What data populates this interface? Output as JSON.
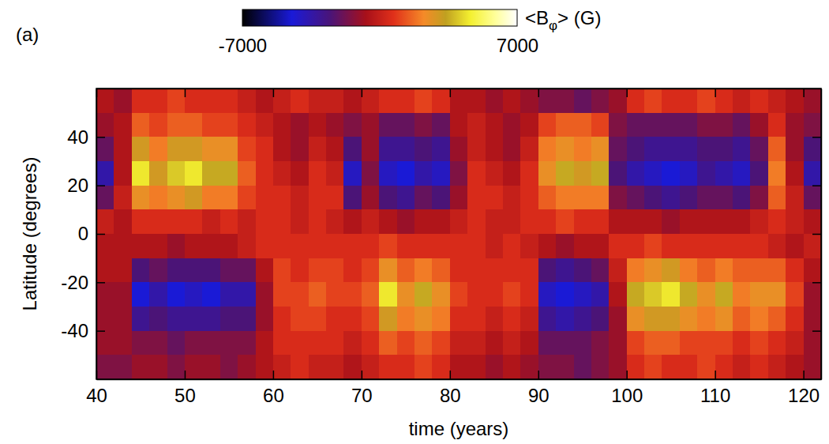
{
  "chart_data": {
    "type": "heatmap",
    "panel": "(a)",
    "xlabel": "time (years)",
    "ylabel": "Latitude (degrees)",
    "xlim": [
      40,
      122
    ],
    "xticks": [
      40,
      50,
      60,
      70,
      80,
      90,
      100,
      110,
      120
    ],
    "ylim": [
      -60,
      60
    ],
    "yticks": [
      -40,
      -20,
      0,
      20,
      40
    ],
    "x": [
      41,
      43,
      45,
      47,
      49,
      51,
      53,
      55,
      57,
      59,
      61,
      63,
      65,
      67,
      69,
      71,
      73,
      75,
      77,
      79,
      81,
      83,
      85,
      87,
      89,
      91,
      93,
      95,
      97,
      99,
      101,
      103,
      105,
      107,
      109,
      111,
      113,
      115,
      117,
      119,
      121
    ],
    "y": [
      55,
      45,
      35,
      25,
      15,
      5,
      -5,
      -15,
      -25,
      -35,
      -45,
      -55
    ],
    "cells": [
      [
        -500,
        -1000,
        500,
        500,
        1000,
        500,
        500,
        500,
        0,
        -500,
        0,
        500,
        0,
        0,
        -500,
        0,
        500,
        500,
        1000,
        500,
        -500,
        -500,
        -1000,
        -500,
        -1000,
        -1500,
        -1500,
        -2000,
        -1500,
        -1000,
        500,
        1000,
        500,
        500,
        1000,
        500,
        0,
        500,
        0,
        -500,
        -1000
      ],
      [
        -1000,
        -500,
        1500,
        1000,
        1500,
        1500,
        1000,
        1000,
        500,
        0,
        -500,
        -1000,
        -500,
        -1000,
        -1500,
        -1000,
        -2000,
        -2000,
        -1500,
        -2000,
        -500,
        0,
        -500,
        -1000,
        -500,
        1000,
        1500,
        1500,
        1000,
        -1500,
        -2000,
        -2000,
        -2000,
        -2000,
        -1500,
        -1500,
        -2000,
        -1000,
        500,
        -1000,
        -1500
      ],
      [
        -2000,
        -500,
        3000,
        2000,
        3000,
        3000,
        2500,
        2500,
        1000,
        500,
        -500,
        -1000,
        0,
        -500,
        -2500,
        -1000,
        -3000,
        -3000,
        -2500,
        -3000,
        -1000,
        0,
        -500,
        -1000,
        0,
        2000,
        2500,
        2000,
        2500,
        -2000,
        -2500,
        -3000,
        -3000,
        -3000,
        -2500,
        -2500,
        -3000,
        -2000,
        1500,
        -1000,
        -2500
      ],
      [
        -3500,
        -500,
        4500,
        3000,
        4000,
        4500,
        3500,
        3500,
        1500,
        500,
        0,
        -500,
        500,
        0,
        -4000,
        -1500,
        -4000,
        -4500,
        -3500,
        -4000,
        -1500,
        500,
        0,
        -500,
        500,
        2500,
        3500,
        3000,
        3500,
        -2500,
        -3500,
        -4000,
        -4500,
        -4000,
        -3000,
        -3500,
        -4000,
        -2500,
        2000,
        -500,
        -3500
      ],
      [
        -2000,
        0,
        2500,
        2000,
        2500,
        3000,
        2000,
        2000,
        1000,
        500,
        500,
        0,
        500,
        500,
        -2500,
        -1000,
        -2500,
        -3000,
        -2000,
        -2500,
        -1000,
        500,
        500,
        0,
        500,
        1500,
        2000,
        2000,
        2000,
        -1500,
        -2000,
        -2500,
        -3000,
        -2500,
        -2000,
        -2000,
        -2500,
        -1500,
        1500,
        0,
        -2000
      ],
      [
        0,
        -500,
        500,
        500,
        500,
        500,
        0,
        500,
        0,
        500,
        500,
        0,
        500,
        0,
        -500,
        0,
        -500,
        -1000,
        -500,
        -500,
        0,
        500,
        0,
        0,
        500,
        500,
        1000,
        500,
        500,
        -500,
        -500,
        -500,
        -1000,
        -500,
        -500,
        -500,
        -500,
        0,
        500,
        0,
        -500
      ],
      [
        -500,
        -500,
        -500,
        -500,
        -1000,
        -500,
        -500,
        -500,
        0,
        500,
        500,
        500,
        500,
        500,
        500,
        500,
        1000,
        500,
        500,
        500,
        500,
        500,
        0,
        500,
        0,
        -500,
        -1000,
        -500,
        -500,
        500,
        500,
        1000,
        500,
        500,
        500,
        500,
        500,
        500,
        0,
        -500,
        0
      ],
      [
        -500,
        -500,
        -2500,
        -2000,
        -2500,
        -2500,
        -2500,
        -2000,
        -2000,
        -500,
        1000,
        500,
        1000,
        1000,
        500,
        1000,
        2500,
        1500,
        2000,
        1500,
        500,
        500,
        500,
        500,
        500,
        -2500,
        -3000,
        -2500,
        -2000,
        0,
        2000,
        2500,
        3000,
        2000,
        1500,
        2000,
        1500,
        1500,
        1500,
        500,
        -500
      ],
      [
        -1000,
        -1000,
        -4500,
        -3500,
        -4500,
        -4000,
        -4500,
        -3500,
        -3500,
        -1000,
        1000,
        1000,
        1500,
        1000,
        1000,
        1500,
        4500,
        2500,
        3500,
        2500,
        1000,
        500,
        500,
        1000,
        500,
        -4000,
        -4500,
        -4000,
        -3500,
        -500,
        3500,
        4000,
        4500,
        3500,
        2500,
        3500,
        2000,
        2500,
        2500,
        1000,
        -1000
      ],
      [
        -1000,
        -1000,
        -3000,
        -2500,
        -3000,
        -3000,
        -3000,
        -2500,
        -2500,
        -1000,
        500,
        1000,
        1000,
        500,
        500,
        1000,
        3000,
        2000,
        2500,
        2000,
        500,
        500,
        0,
        500,
        0,
        -3000,
        -3500,
        -3000,
        -2500,
        -1000,
        2500,
        3000,
        3000,
        2500,
        2000,
        2500,
        1500,
        2000,
        1500,
        500,
        -1000
      ],
      [
        -1000,
        -1000,
        -1500,
        -1500,
        -2000,
        -1500,
        -1500,
        -1500,
        -1500,
        -500,
        500,
        500,
        500,
        500,
        0,
        500,
        1500,
        1000,
        1500,
        1000,
        0,
        0,
        -500,
        0,
        -500,
        -2000,
        -2000,
        -2000,
        -1500,
        -1000,
        1000,
        1500,
        1500,
        1000,
        1000,
        1000,
        500,
        1000,
        500,
        0,
        -1000
      ],
      [
        -1500,
        -1500,
        -1000,
        -1000,
        -1500,
        -1000,
        -1000,
        -1500,
        -1000,
        -500,
        0,
        500,
        0,
        0,
        -500,
        0,
        500,
        500,
        1000,
        500,
        -500,
        -500,
        -1000,
        -500,
        -1000,
        -1500,
        -1500,
        -2000,
        -1500,
        -1000,
        500,
        1000,
        500,
        500,
        1000,
        500,
        0,
        500,
        0,
        -500,
        -1000
      ]
    ],
    "colorbar": {
      "label": "<Bφ> (G)",
      "range": [
        -7000,
        7000
      ],
      "ticks": [
        -7000,
        7000
      ]
    }
  }
}
